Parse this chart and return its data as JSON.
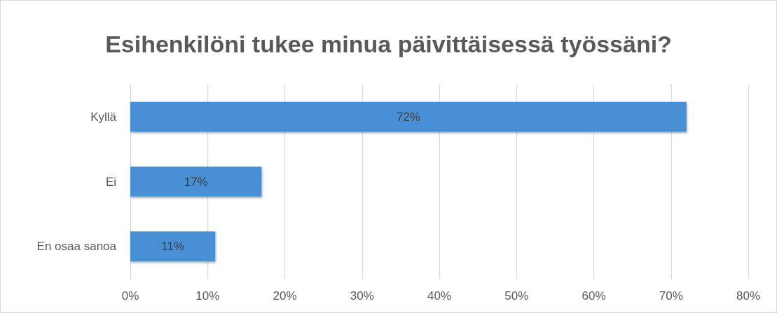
{
  "chart_data": {
    "type": "bar",
    "orientation": "horizontal",
    "title": "Esihenkilöni tukee minua päivittäisessä työssäni?",
    "categories": [
      "Kyllä",
      "Ei",
      "En osaa sanoa"
    ],
    "values": [
      72,
      17,
      11
    ],
    "value_labels": [
      "72%",
      "17%",
      "11%"
    ],
    "color": "#4a8fd6",
    "xlim": [
      0,
      80
    ],
    "xticks": [
      {
        "value": 0,
        "label": "0%"
      },
      {
        "value": 10,
        "label": "10%"
      },
      {
        "value": 20,
        "label": "20%"
      },
      {
        "value": 30,
        "label": "30%"
      },
      {
        "value": 40,
        "label": "40%"
      },
      {
        "value": 50,
        "label": "50%"
      },
      {
        "value": 60,
        "label": "60%"
      },
      {
        "value": 70,
        "label": "70%"
      },
      {
        "value": 80,
        "label": "80%"
      }
    ],
    "grid": "x"
  }
}
